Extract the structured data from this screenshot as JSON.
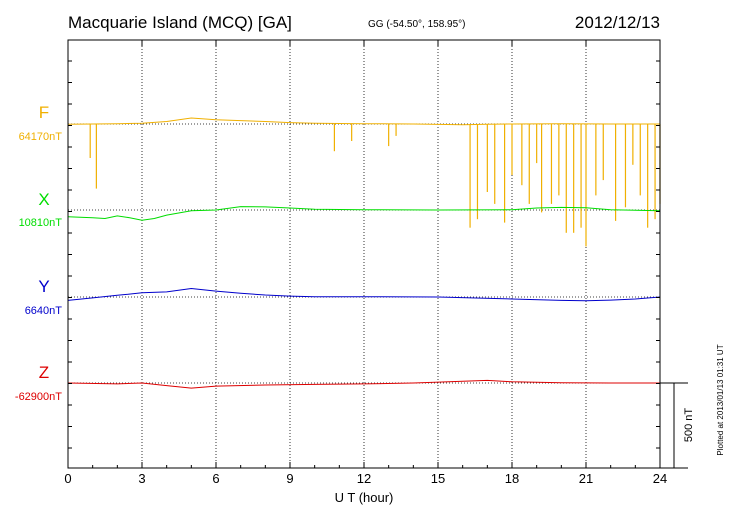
{
  "header": {
    "station": "Macquarie Island (MCQ)  [GA]",
    "coords": "GG (-54.50°, 158.95°)",
    "date": "2012/12/13"
  },
  "footer_note": "Plotted at 2013/01/13 01:31  UT",
  "scale_bar": {
    "label": "500 nT",
    "value": 500
  },
  "chart_data": {
    "type": "line",
    "title": "Macquarie Island (MCQ)  [GA]",
    "xlabel": "U T (hour)",
    "xlim": [
      0,
      24
    ],
    "x_ticks": [
      0,
      3,
      6,
      9,
      12,
      15,
      18,
      21,
      24
    ],
    "x_tick_labels": [
      "0",
      "3",
      "6",
      "9",
      "12",
      "15",
      "18",
      "21",
      "24"
    ],
    "grid": "vertical dotted every 3 h; dotted baseline per component",
    "units": "nT",
    "series": [
      {
        "name": "F",
        "baseline_label": "64170nT",
        "baseline": 64170,
        "color": "#f0b000",
        "x": [
          0,
          2,
          3,
          4,
          5,
          6,
          7,
          8,
          9,
          10,
          12,
          14,
          16,
          17,
          18,
          20,
          22,
          24
        ],
        "y": [
          64168,
          64172,
          64175,
          64185,
          64205,
          64195,
          64190,
          64185,
          64178,
          64175,
          64172,
          64170,
          64165,
          64168,
          64170,
          64172,
          64170,
          64170
        ],
        "spikes": [
          {
            "x": 0.9,
            "depth": 200
          },
          {
            "x": 1.15,
            "depth": 380
          },
          {
            "x": 10.8,
            "depth": 160
          },
          {
            "x": 11.5,
            "depth": 100
          },
          {
            "x": 13.0,
            "depth": 130
          },
          {
            "x": 13.3,
            "depth": 70
          },
          {
            "x": 16.3,
            "depth": 610
          },
          {
            "x": 16.6,
            "depth": 560
          },
          {
            "x": 17.0,
            "depth": 400
          },
          {
            "x": 17.3,
            "depth": 470
          },
          {
            "x": 17.7,
            "depth": 580
          },
          {
            "x": 18.0,
            "depth": 300
          },
          {
            "x": 18.4,
            "depth": 360
          },
          {
            "x": 18.7,
            "depth": 470
          },
          {
            "x": 19.0,
            "depth": 230
          },
          {
            "x": 19.2,
            "depth": 520
          },
          {
            "x": 19.6,
            "depth": 470
          },
          {
            "x": 19.9,
            "depth": 420
          },
          {
            "x": 20.2,
            "depth": 640
          },
          {
            "x": 20.5,
            "depth": 640
          },
          {
            "x": 20.8,
            "depth": 610
          },
          {
            "x": 21.0,
            "depth": 720
          },
          {
            "x": 21.4,
            "depth": 420
          },
          {
            "x": 21.7,
            "depth": 330
          },
          {
            "x": 22.2,
            "depth": 570
          },
          {
            "x": 22.6,
            "depth": 490
          },
          {
            "x": 22.9,
            "depth": 240
          },
          {
            "x": 23.2,
            "depth": 420
          },
          {
            "x": 23.5,
            "depth": 610
          },
          {
            "x": 23.8,
            "depth": 560
          },
          {
            "x": 24.0,
            "depth": 470
          }
        ]
      },
      {
        "name": "X",
        "baseline_label": "10810nT",
        "baseline": 10810,
        "color": "#00dd00",
        "x": [
          0,
          1,
          1.5,
          2,
          2.5,
          3,
          3.5,
          4,
          5,
          6,
          7,
          8,
          9,
          10,
          12,
          15,
          18,
          19,
          20,
          21,
          22,
          24
        ],
        "y": [
          10770,
          10765,
          10760,
          10775,
          10765,
          10750,
          10760,
          10780,
          10805,
          10810,
          10830,
          10828,
          10822,
          10815,
          10812,
          10810,
          10812,
          10822,
          10825,
          10823,
          10812,
          10805
        ]
      },
      {
        "name": "Y",
        "baseline_label": "6640nT",
        "baseline": 6640,
        "color": "#0000cc",
        "x": [
          0,
          1,
          2,
          3,
          4,
          5,
          6,
          7,
          8,
          9,
          10,
          12,
          15,
          18,
          20,
          21,
          22,
          23,
          24
        ],
        "y": [
          6620,
          6635,
          6650,
          6665,
          6670,
          6690,
          6675,
          6662,
          6652,
          6645,
          6642,
          6642,
          6640,
          6628,
          6620,
          6618,
          6622,
          6628,
          6640
        ]
      },
      {
        "name": "Z",
        "baseline_label": "-62900nT",
        "baseline": -62900,
        "color": "#dd0000",
        "x": [
          0,
          2,
          3,
          4,
          5,
          6,
          8,
          10,
          12,
          14,
          16,
          17,
          18,
          20,
          22,
          24
        ],
        "y": [
          -62900,
          -62905,
          -62900,
          -62915,
          -62930,
          -62918,
          -62912,
          -62908,
          -62905,
          -62900,
          -62890,
          -62885,
          -62893,
          -62898,
          -62900,
          -62900
        ]
      }
    ]
  }
}
